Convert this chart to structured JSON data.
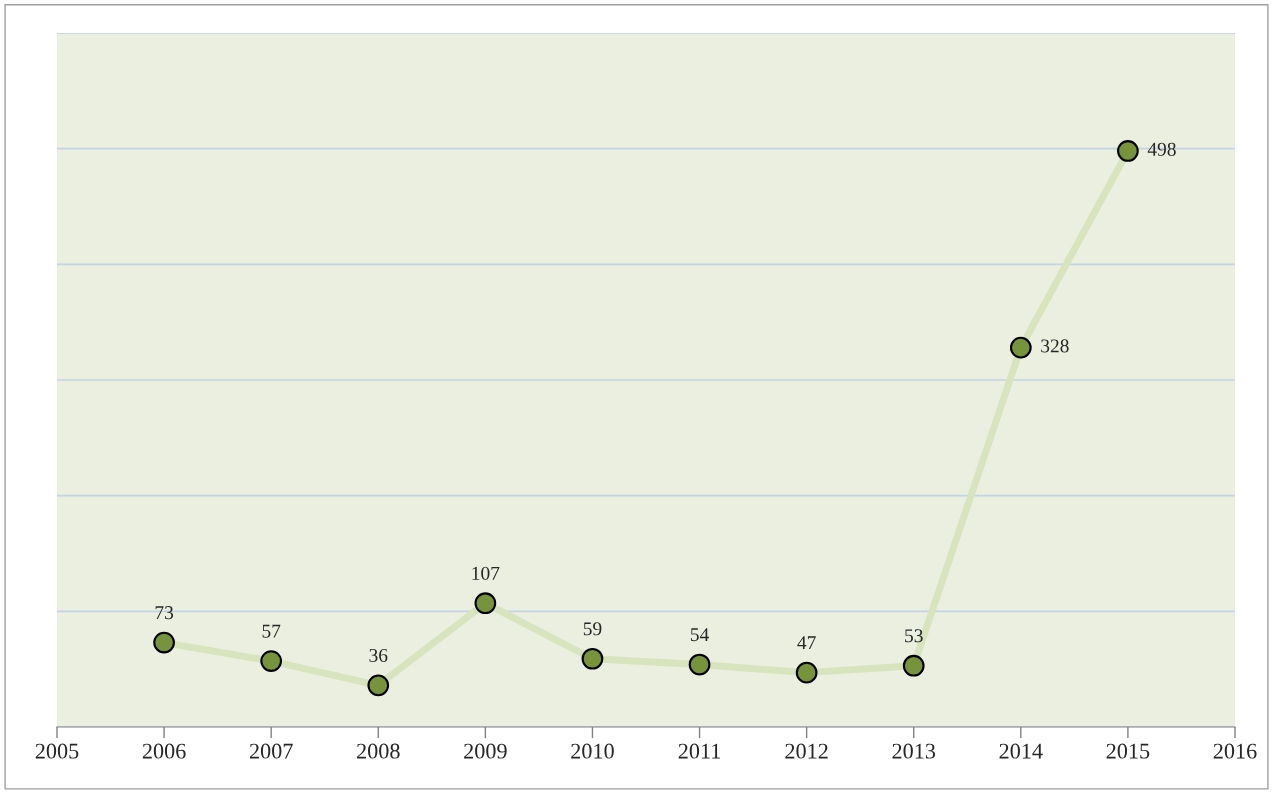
{
  "chart_data": {
    "type": "line",
    "x": [
      2006,
      2007,
      2008,
      2009,
      2010,
      2011,
      2012,
      2013,
      2014,
      2015
    ],
    "series": [
      {
        "color": "#d7e4bd",
        "colors": [
          "#77933c",
          "#77933c",
          "#77933c",
          "#77933c",
          "#77933c",
          "#77933c",
          "#77933c",
          "#77933c",
          "#77933c",
          "#77933c"
        ],
        "values": [
          73,
          57,
          36,
          107,
          59,
          54,
          47,
          53,
          328,
          498
        ]
      }
    ],
    "xlim": [
      2005,
      2016
    ],
    "xticks": [
      2005,
      2006,
      2007,
      2008,
      2009,
      2010,
      2011,
      2012,
      2013,
      2014,
      2015,
      2016
    ],
    "ylim": [
      0,
      600
    ],
    "yticks": [
      {
        "value": 0,
        "label": null
      },
      {
        "value": 100,
        "label": null
      },
      {
        "value": 200,
        "label": null
      },
      {
        "value": 300,
        "label": null
      },
      {
        "value": 400,
        "label": null
      },
      {
        "value": 500,
        "label": null
      },
      {
        "value": 600,
        "label": null
      }
    ],
    "tick_labels": "x",
    "grid": "y",
    "marker": "circle",
    "line_style": "solid",
    "data_labels": true
  }
}
